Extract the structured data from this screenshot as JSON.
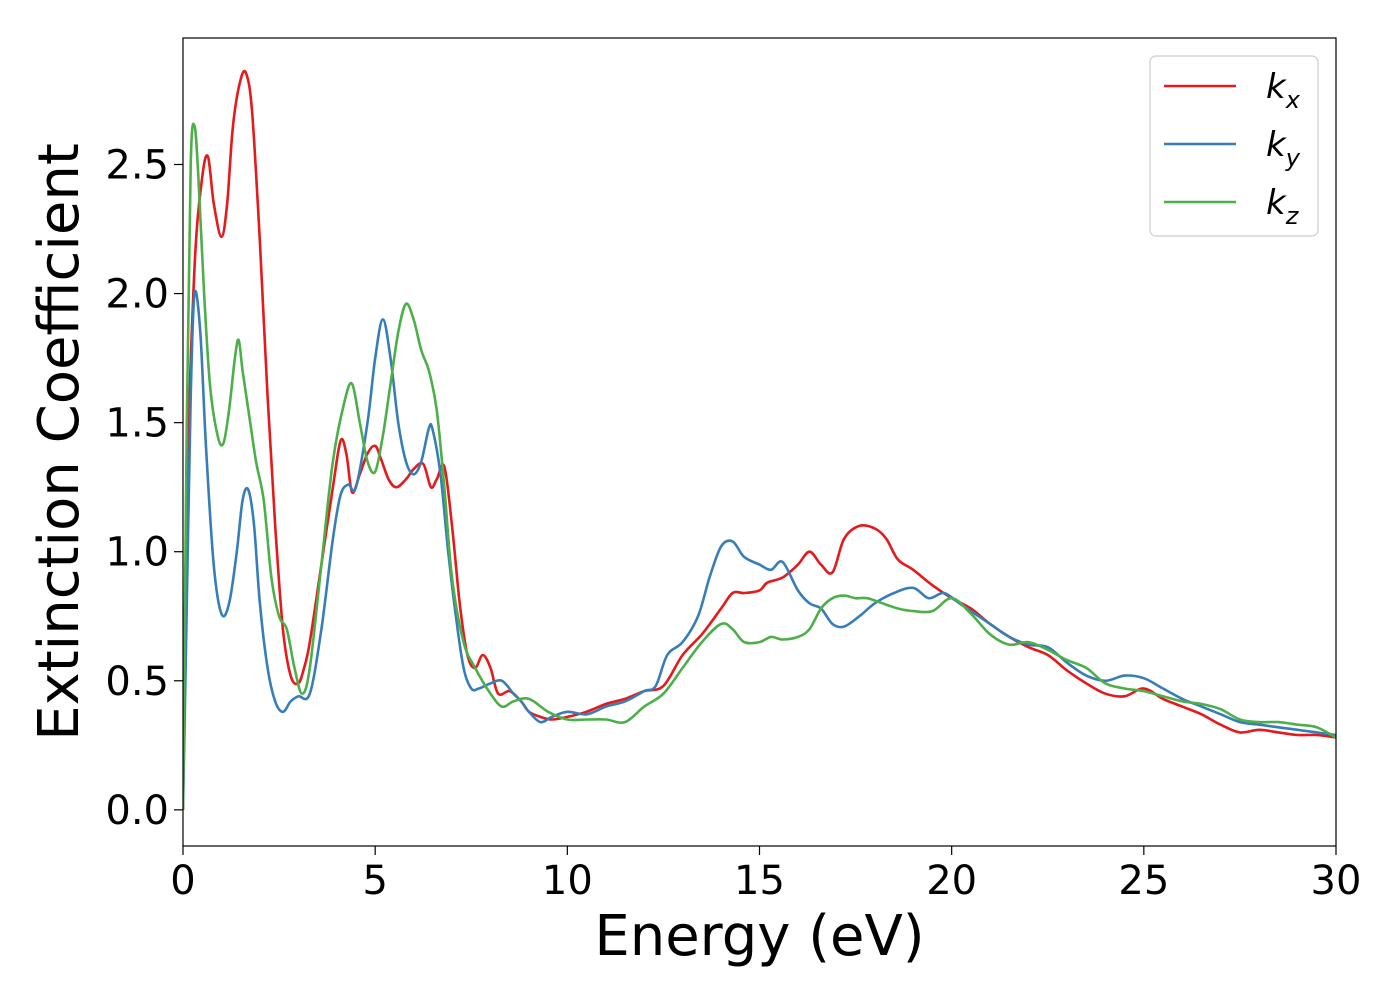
{
  "chart_data": {
    "type": "line",
    "xlabel": "Energy (eV)",
    "ylabel": "Extinction Coefficient",
    "xlim": [
      0,
      30
    ],
    "ylim": [
      -0.14,
      2.99
    ],
    "x_ticks": [
      "0",
      "5",
      "10",
      "15",
      "20",
      "25",
      "30"
    ],
    "y_ticks": [
      "0.0",
      "0.5",
      "1.0",
      "1.5",
      "2.0",
      "2.5"
    ],
    "grid": false,
    "legend_position": "top-right",
    "series": [
      {
        "name": "k",
        "subscript": "x",
        "color": "#e41a1c",
        "x": [
          0,
          0.1,
          0.3,
          0.5,
          0.65,
          0.8,
          1.0,
          1.15,
          1.3,
          1.5,
          1.65,
          1.8,
          2.0,
          2.2,
          2.4,
          2.6,
          2.8,
          3.0,
          3.15,
          3.3,
          3.6,
          3.9,
          4.1,
          4.25,
          4.4,
          4.6,
          4.8,
          5.0,
          5.15,
          5.35,
          5.55,
          5.8,
          6.0,
          6.25,
          6.45,
          6.6,
          6.8,
          7.0,
          7.2,
          7.4,
          7.6,
          7.8,
          8.0,
          8.2,
          8.5,
          8.8,
          9.0,
          9.3,
          9.6,
          10.0,
          10.5,
          11.0,
          11.5,
          12.0,
          12.5,
          13.0,
          13.5,
          14.0,
          14.3,
          14.6,
          15.0,
          15.2,
          15.6,
          16.0,
          16.3,
          16.6,
          16.9,
          17.2,
          17.6,
          18.0,
          18.3,
          18.6,
          19.0,
          19.5,
          20.0,
          20.5,
          21.0,
          21.5,
          22.0,
          22.5,
          23.0,
          23.5,
          24.0,
          24.5,
          25.0,
          25.5,
          26.0,
          26.5,
          27.0,
          27.5,
          28.0,
          28.5,
          29.0,
          29.5,
          30.0
        ],
        "y": [
          0.0,
          1.2,
          2.1,
          2.45,
          2.53,
          2.35,
          2.22,
          2.35,
          2.65,
          2.83,
          2.85,
          2.7,
          2.2,
          1.6,
          1.1,
          0.7,
          0.52,
          0.49,
          0.55,
          0.65,
          0.95,
          1.25,
          1.43,
          1.38,
          1.23,
          1.3,
          1.38,
          1.41,
          1.36,
          1.28,
          1.25,
          1.28,
          1.32,
          1.34,
          1.25,
          1.28,
          1.33,
          1.1,
          0.8,
          0.6,
          0.55,
          0.6,
          0.55,
          0.45,
          0.46,
          0.42,
          0.38,
          0.36,
          0.35,
          0.36,
          0.38,
          0.41,
          0.43,
          0.46,
          0.48,
          0.6,
          0.68,
          0.78,
          0.84,
          0.84,
          0.85,
          0.88,
          0.9,
          0.95,
          1.0,
          0.95,
          0.92,
          1.05,
          1.1,
          1.09,
          1.05,
          0.97,
          0.93,
          0.87,
          0.82,
          0.78,
          0.72,
          0.67,
          0.63,
          0.6,
          0.54,
          0.49,
          0.45,
          0.44,
          0.47,
          0.43,
          0.4,
          0.37,
          0.33,
          0.3,
          0.31,
          0.3,
          0.29,
          0.29,
          0.28
        ]
      },
      {
        "name": "k",
        "subscript": "y",
        "color": "#377eb8",
        "x": [
          0,
          0.1,
          0.2,
          0.3,
          0.45,
          0.6,
          0.8,
          1.0,
          1.2,
          1.4,
          1.55,
          1.7,
          1.85,
          2.0,
          2.2,
          2.4,
          2.6,
          2.8,
          3.0,
          3.3,
          3.6,
          3.9,
          4.1,
          4.3,
          4.5,
          4.8,
          5.0,
          5.2,
          5.4,
          5.6,
          5.8,
          6.0,
          6.2,
          6.4,
          6.5,
          6.7,
          6.9,
          7.1,
          7.3,
          7.5,
          7.7,
          8.0,
          8.3,
          8.6,
          8.8,
          9.0,
          9.3,
          9.6,
          10.0,
          10.5,
          11.0,
          11.5,
          12.0,
          12.3,
          12.6,
          13.0,
          13.4,
          13.7,
          14.0,
          14.3,
          14.6,
          15.0,
          15.3,
          15.6,
          16.0,
          16.3,
          16.6,
          16.9,
          17.2,
          17.6,
          18.0,
          18.5,
          19.0,
          19.4,
          19.8,
          20.2,
          20.6,
          21.0,
          21.5,
          22.0,
          22.5,
          23.0,
          23.5,
          24.0,
          24.5,
          25.0,
          25.5,
          26.0,
          26.5,
          27.0,
          27.5,
          28.0,
          28.5,
          29.0,
          29.5,
          30.0
        ],
        "y": [
          0.0,
          0.8,
          1.6,
          2.0,
          1.85,
          1.4,
          0.95,
          0.76,
          0.8,
          1.0,
          1.2,
          1.24,
          1.1,
          0.8,
          0.55,
          0.42,
          0.38,
          0.42,
          0.44,
          0.45,
          0.7,
          1.05,
          1.22,
          1.26,
          1.25,
          1.5,
          1.75,
          1.9,
          1.75,
          1.5,
          1.35,
          1.3,
          1.35,
          1.48,
          1.47,
          1.3,
          1.0,
          0.75,
          0.55,
          0.47,
          0.47,
          0.49,
          0.5,
          0.45,
          0.42,
          0.38,
          0.34,
          0.36,
          0.38,
          0.37,
          0.4,
          0.42,
          0.46,
          0.48,
          0.6,
          0.65,
          0.75,
          0.9,
          1.02,
          1.04,
          0.98,
          0.95,
          0.93,
          0.96,
          0.85,
          0.8,
          0.78,
          0.72,
          0.71,
          0.75,
          0.8,
          0.84,
          0.86,
          0.82,
          0.84,
          0.8,
          0.76,
          0.72,
          0.67,
          0.64,
          0.63,
          0.57,
          0.52,
          0.5,
          0.52,
          0.51,
          0.47,
          0.43,
          0.4,
          0.37,
          0.34,
          0.33,
          0.32,
          0.31,
          0.3,
          0.29
        ]
      },
      {
        "name": "k",
        "subscript": "z",
        "color": "#4daf4a",
        "x": [
          0,
          0.1,
          0.2,
          0.3,
          0.4,
          0.55,
          0.7,
          0.9,
          1.05,
          1.2,
          1.35,
          1.45,
          1.55,
          1.7,
          1.9,
          2.1,
          2.3,
          2.5,
          2.7,
          2.9,
          3.1,
          3.3,
          3.6,
          3.9,
          4.2,
          4.4,
          4.6,
          4.8,
          5.0,
          5.2,
          5.4,
          5.6,
          5.8,
          6.0,
          6.2,
          6.4,
          6.6,
          6.8,
          7.0,
          7.3,
          7.6,
          8.0,
          8.3,
          8.6,
          9.0,
          9.5,
          10.0,
          10.5,
          11.0,
          11.5,
          12.0,
          12.5,
          13.0,
          13.5,
          14.0,
          14.3,
          14.6,
          15.0,
          15.3,
          15.6,
          16.0,
          16.3,
          16.6,
          16.9,
          17.2,
          17.5,
          17.8,
          18.2,
          18.6,
          19.0,
          19.5,
          20.0,
          20.5,
          21.0,
          21.5,
          22.0,
          22.5,
          23.0,
          23.5,
          24.0,
          24.5,
          25.0,
          25.5,
          26.0,
          26.5,
          27.0,
          27.5,
          28.0,
          28.5,
          29.0,
          29.5,
          30.0
        ],
        "y": [
          0.0,
          1.5,
          2.5,
          2.65,
          2.45,
          2.0,
          1.65,
          1.45,
          1.42,
          1.55,
          1.75,
          1.82,
          1.7,
          1.55,
          1.35,
          1.2,
          0.9,
          0.75,
          0.7,
          0.55,
          0.45,
          0.55,
          0.95,
          1.35,
          1.58,
          1.65,
          1.5,
          1.35,
          1.31,
          1.45,
          1.65,
          1.85,
          1.96,
          1.9,
          1.78,
          1.7,
          1.55,
          1.25,
          0.9,
          0.65,
          0.55,
          0.45,
          0.4,
          0.42,
          0.43,
          0.38,
          0.35,
          0.35,
          0.35,
          0.34,
          0.4,
          0.45,
          0.55,
          0.65,
          0.72,
          0.7,
          0.65,
          0.65,
          0.67,
          0.66,
          0.67,
          0.7,
          0.78,
          0.82,
          0.83,
          0.82,
          0.82,
          0.8,
          0.78,
          0.77,
          0.77,
          0.82,
          0.76,
          0.68,
          0.64,
          0.65,
          0.62,
          0.58,
          0.55,
          0.49,
          0.47,
          0.46,
          0.44,
          0.42,
          0.41,
          0.39,
          0.35,
          0.34,
          0.34,
          0.33,
          0.32,
          0.28
        ]
      }
    ]
  }
}
